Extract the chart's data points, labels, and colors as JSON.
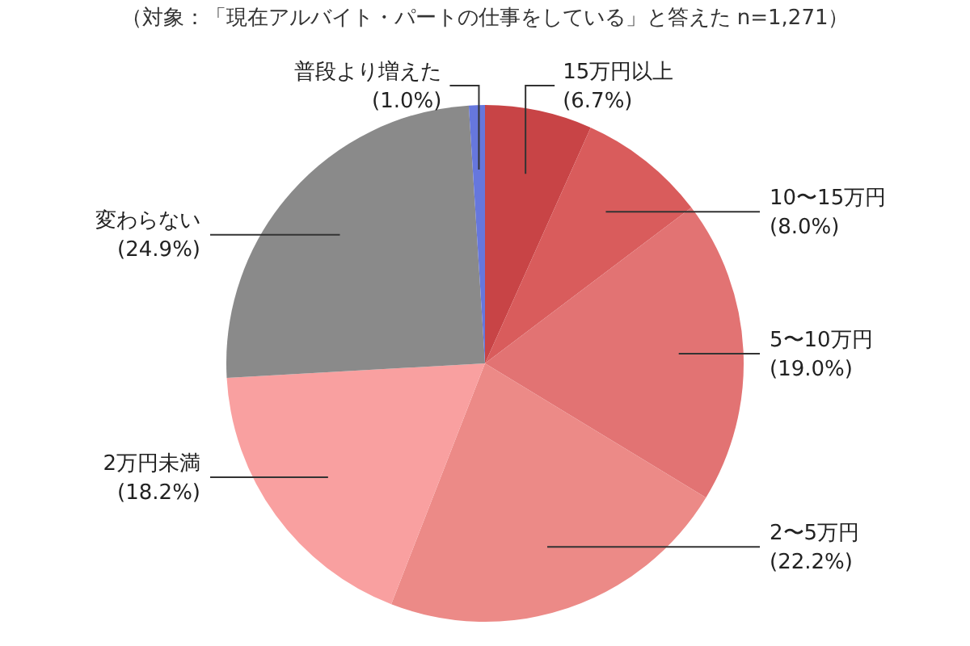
{
  "chart_data": {
    "type": "pie",
    "subtitle": "（対象：「現在アルバイト・パートの仕事をしている」と答えた n=1,271）",
    "categories": [
      "15万円以上",
      "10〜15万円",
      "5〜10万円",
      "2〜5万円",
      "2万円未満",
      "変わらない",
      "普段より増えた"
    ],
    "values": [
      6.7,
      8.0,
      19.0,
      22.2,
      18.2,
      24.9,
      1.0
    ],
    "value_labels": [
      "(6.7%)",
      "(8.0%)",
      "(19.0%)",
      "(22.2%)",
      "(18.2%)",
      "(24.9%)",
      "(1.0%)"
    ],
    "colors": [
      "#c84446",
      "#d95c5c",
      "#e27373",
      "#ec8a87",
      "#f9a0a0",
      "#8a8a8a",
      "#6677dd"
    ],
    "legend": false
  }
}
